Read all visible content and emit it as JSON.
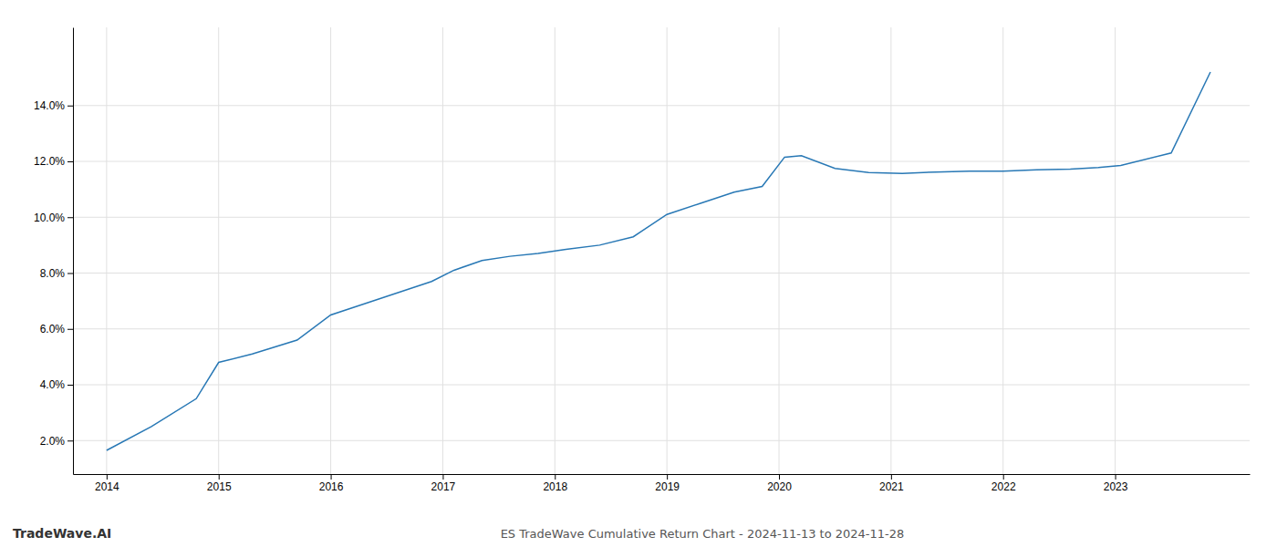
{
  "chart_data": {
    "type": "line",
    "title": "ES TradeWave Cumulative Return Chart - 2024-11-13 to 2024-11-28",
    "annotations": [
      "TradeWave.AI"
    ],
    "x": [
      2014,
      2014.4,
      2014.8,
      2015.0,
      2015.3,
      2015.7,
      2016.0,
      2016.3,
      2016.6,
      2016.9,
      2017.1,
      2017.35,
      2017.6,
      2017.85,
      2018.1,
      2018.4,
      2018.7,
      2019.0,
      2019.3,
      2019.6,
      2019.85,
      2020.05,
      2020.2,
      2020.5,
      2020.8,
      2021.1,
      2021.4,
      2021.7,
      2022.0,
      2022.3,
      2022.6,
      2022.85,
      2023.05,
      2023.5,
      2023.85
    ],
    "values": [
      1.65,
      2.5,
      3.5,
      4.8,
      5.1,
      5.6,
      6.5,
      6.9,
      7.3,
      7.7,
      8.1,
      8.45,
      8.6,
      8.7,
      8.85,
      9.0,
      9.3,
      10.1,
      10.5,
      10.9,
      11.1,
      12.15,
      12.2,
      11.75,
      11.6,
      11.57,
      11.62,
      11.65,
      11.65,
      11.7,
      11.72,
      11.78,
      11.85,
      12.3,
      15.2
    ],
    "color": "#2878b5",
    "xlim": [
      2013.7,
      2024.2
    ],
    "xticks": [
      2014,
      2015,
      2016,
      2017,
      2018,
      2019,
      2020,
      2021,
      2022,
      2023
    ],
    "ylim": [
      0.8,
      16.8
    ],
    "yticks": [
      {
        "value": 2.0,
        "label": "2.0%"
      },
      {
        "value": 4.0,
        "label": "4.0%"
      },
      {
        "value": 6.0,
        "label": "6.0%"
      },
      {
        "value": 8.0,
        "label": "8.0%"
      },
      {
        "value": 10.0,
        "label": "10.0%"
      },
      {
        "value": 12.0,
        "label": "12.0%"
      },
      {
        "value": 14.0,
        "label": "14.0%"
      }
    ],
    "grid": true
  }
}
